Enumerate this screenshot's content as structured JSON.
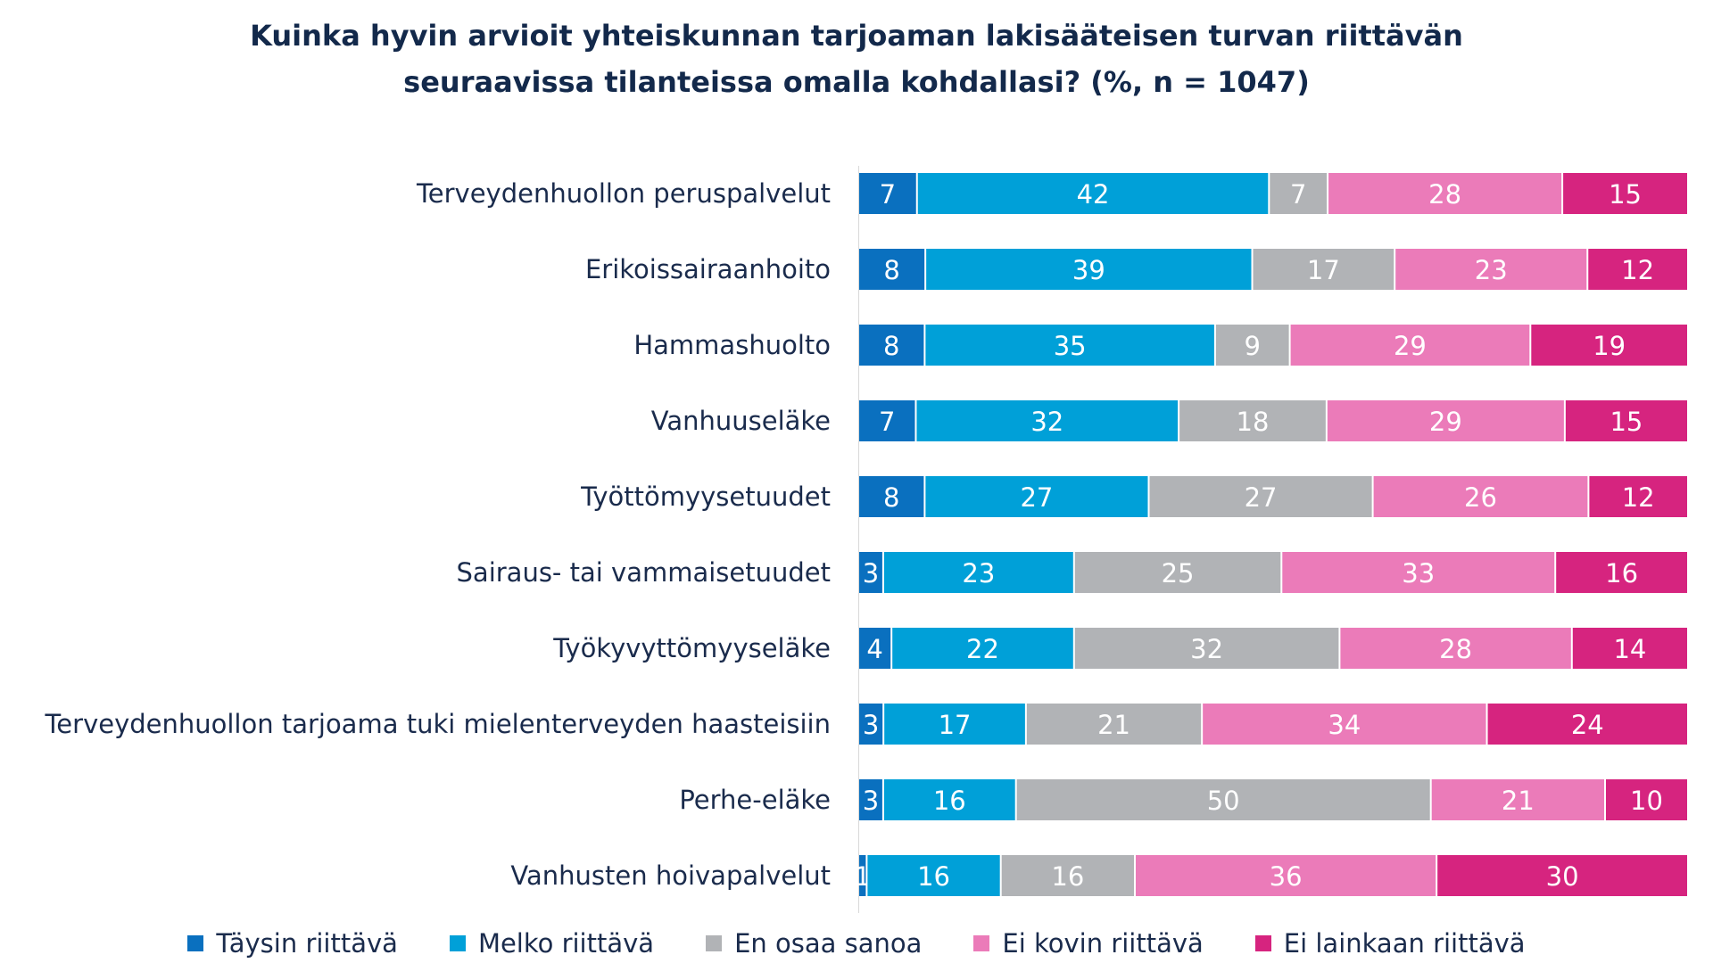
{
  "chart_data": {
    "type": "bar",
    "orientation": "horizontal",
    "stacked": true,
    "title_line1": "Kuinka hyvin arvioit yhteiskunnan tarjoaman lakisääteisen turvan riittävän",
    "title_line2": "seuraavissa tilanteissa omalla kohdallasi? (%, n = 1047)",
    "xlabel": "",
    "ylabel": "",
    "legend_position": "bottom",
    "grid": false,
    "categories": [
      "Terveydenhuollon peruspalvelut",
      "Erikoissairaanhoito",
      "Hammashuolto",
      "Vanhuuseläke",
      "Työttömyysetuudet",
      "Sairaus- tai vammaisetuudet",
      "Työkyvyttömyyseläke",
      "Terveydenhuollon tarjoama tuki mielenterveyden haasteisiin",
      "Perhe-eläke",
      "Vanhusten hoivapalvelut"
    ],
    "series": [
      {
        "name": "Täysin riittävä",
        "color": "#0a70bf",
        "values": [
          7,
          8,
          8,
          7,
          8,
          3,
          4,
          3,
          3,
          1
        ]
      },
      {
        "name": "Melko riittävä",
        "color": "#00a0d8",
        "values": [
          42,
          39,
          35,
          32,
          27,
          23,
          22,
          17,
          16,
          16
        ]
      },
      {
        "name": "En osaa sanoa",
        "color": "#b1b3b6",
        "values": [
          7,
          17,
          9,
          18,
          27,
          25,
          32,
          21,
          50,
          16
        ]
      },
      {
        "name": "Ei kovin riittävä",
        "color": "#eb7bb9",
        "values": [
          28,
          23,
          29,
          29,
          26,
          33,
          28,
          34,
          21,
          36
        ]
      },
      {
        "name": "Ei lainkaan riittävä",
        "color": "#d6247f",
        "values": [
          15,
          12,
          19,
          15,
          12,
          16,
          14,
          24,
          10,
          30
        ]
      }
    ],
    "xlim": [
      0,
      100
    ]
  }
}
